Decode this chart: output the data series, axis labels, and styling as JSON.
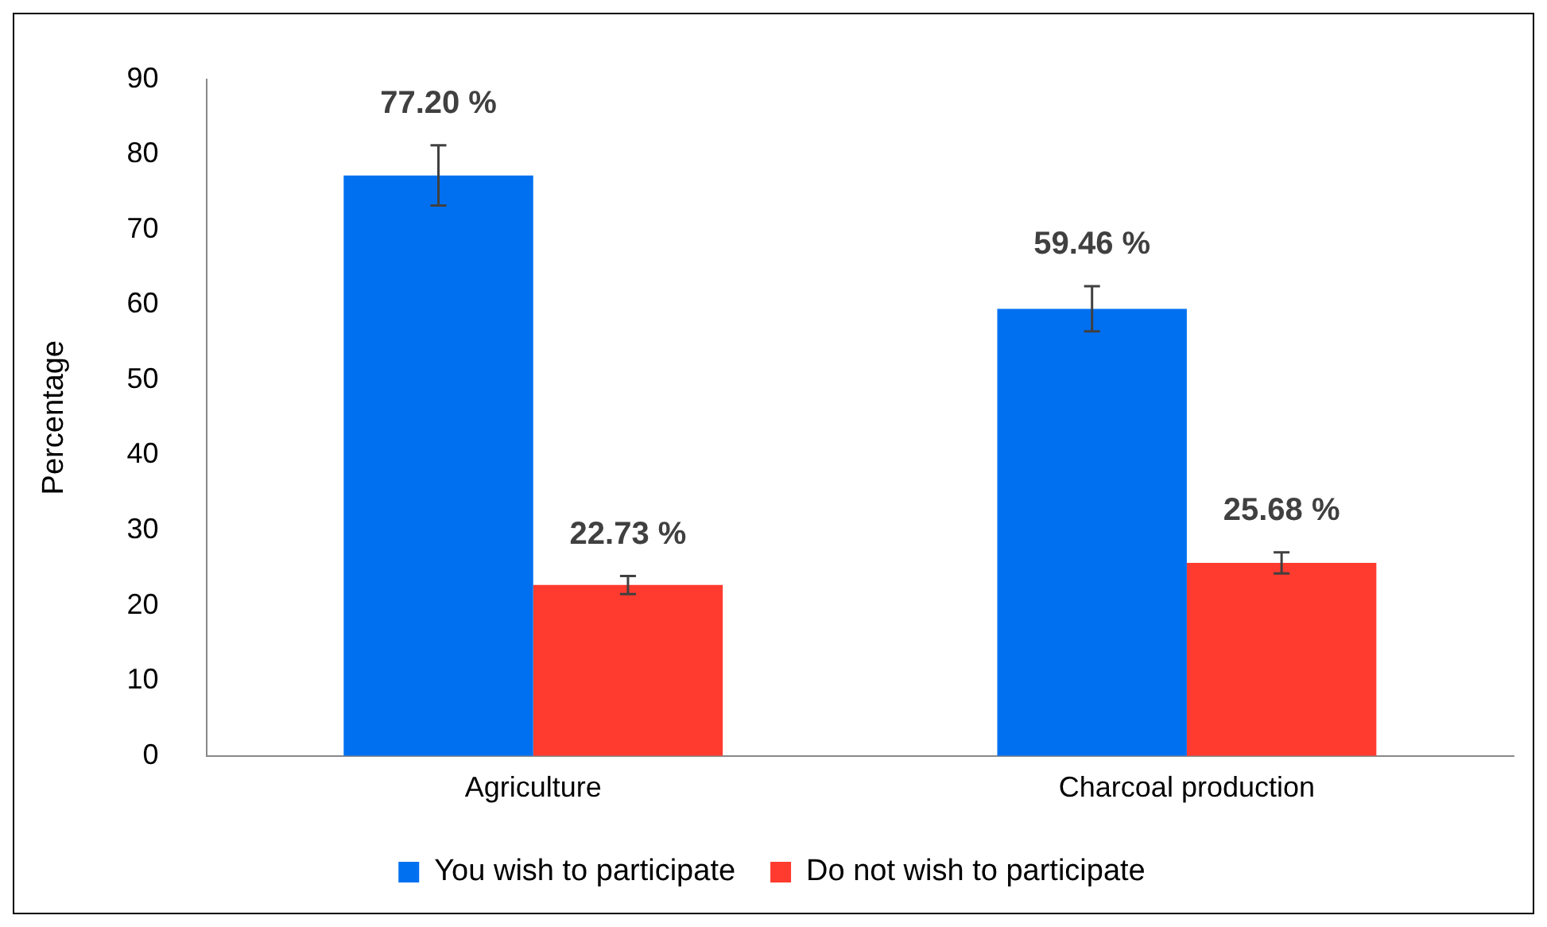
{
  "chart_data": {
    "type": "bar",
    "ylabel": "Percentage",
    "categories": [
      "Agriculture",
      "Charcoal production"
    ],
    "series": [
      {
        "name": "You wish to participate",
        "color": "#0070f0",
        "values": [
          77.2,
          59.46
        ],
        "errors": [
          4,
          3
        ],
        "value_labels": [
          "77.20 %",
          "59.46 %"
        ]
      },
      {
        "name": "Do not wish to participate",
        "color": "#ff3b2f",
        "values": [
          22.73,
          25.68
        ],
        "errors": [
          1.2,
          1.4
        ],
        "value_labels": [
          "22.73 %",
          "25.68 %"
        ]
      }
    ],
    "ylim": [
      0,
      90
    ],
    "yticks": [
      0,
      10,
      20,
      30,
      40,
      50,
      60,
      70,
      80,
      90
    ],
    "grid": false,
    "legend": "bottom"
  }
}
